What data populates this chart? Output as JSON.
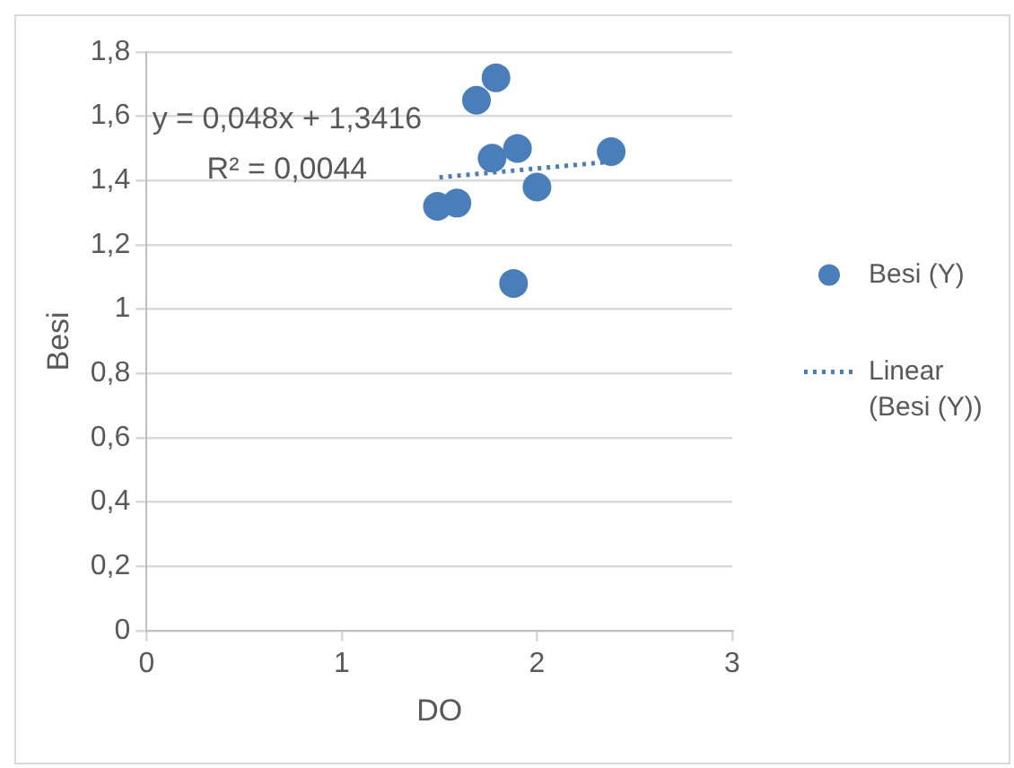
{
  "chart_data": {
    "type": "scatter",
    "xlabel": "DO",
    "ylabel": "Besi",
    "xlim": [
      0,
      3
    ],
    "xticks": [
      0,
      1,
      2,
      3
    ],
    "ylim": [
      0,
      1.8
    ],
    "yticks": [
      {
        "value": 0,
        "label": "0"
      },
      {
        "value": 0.2,
        "label": "0,2"
      },
      {
        "value": 0.4,
        "label": "0,4"
      },
      {
        "value": 0.6,
        "label": "0,6"
      },
      {
        "value": 0.8,
        "label": "0,8"
      },
      {
        "value": 1,
        "label": "1"
      },
      {
        "value": 1.2,
        "label": "1,2"
      },
      {
        "value": 1.4,
        "label": "1,4"
      },
      {
        "value": 1.6,
        "label": "1,6"
      },
      {
        "value": 1.8,
        "label": "1,8"
      }
    ],
    "grid": "y",
    "legend": "right",
    "marker": "circle",
    "series": [
      {
        "name": "Besi (Y)",
        "color": "#4a7ebb",
        "x": [
          1.79,
          1.69,
          1.49,
          1.59,
          1.77,
          1.9,
          2.0,
          2.38,
          1.88
        ],
        "values": [
          1.72,
          1.65,
          1.32,
          1.33,
          1.47,
          1.5,
          1.38,
          1.49,
          1.08
        ]
      },
      {
        "name": "Linear (Besi (Y))",
        "type": "line",
        "line_style": "dotted",
        "marker": "none",
        "color": "#4a7ebb",
        "x": [
          1.5,
          2.4
        ],
        "values": [
          1.41,
          1.46
        ]
      }
    ],
    "annotations": [
      "y = 0,048x + 1,3416",
      "R² = 0,0044"
    ]
  }
}
